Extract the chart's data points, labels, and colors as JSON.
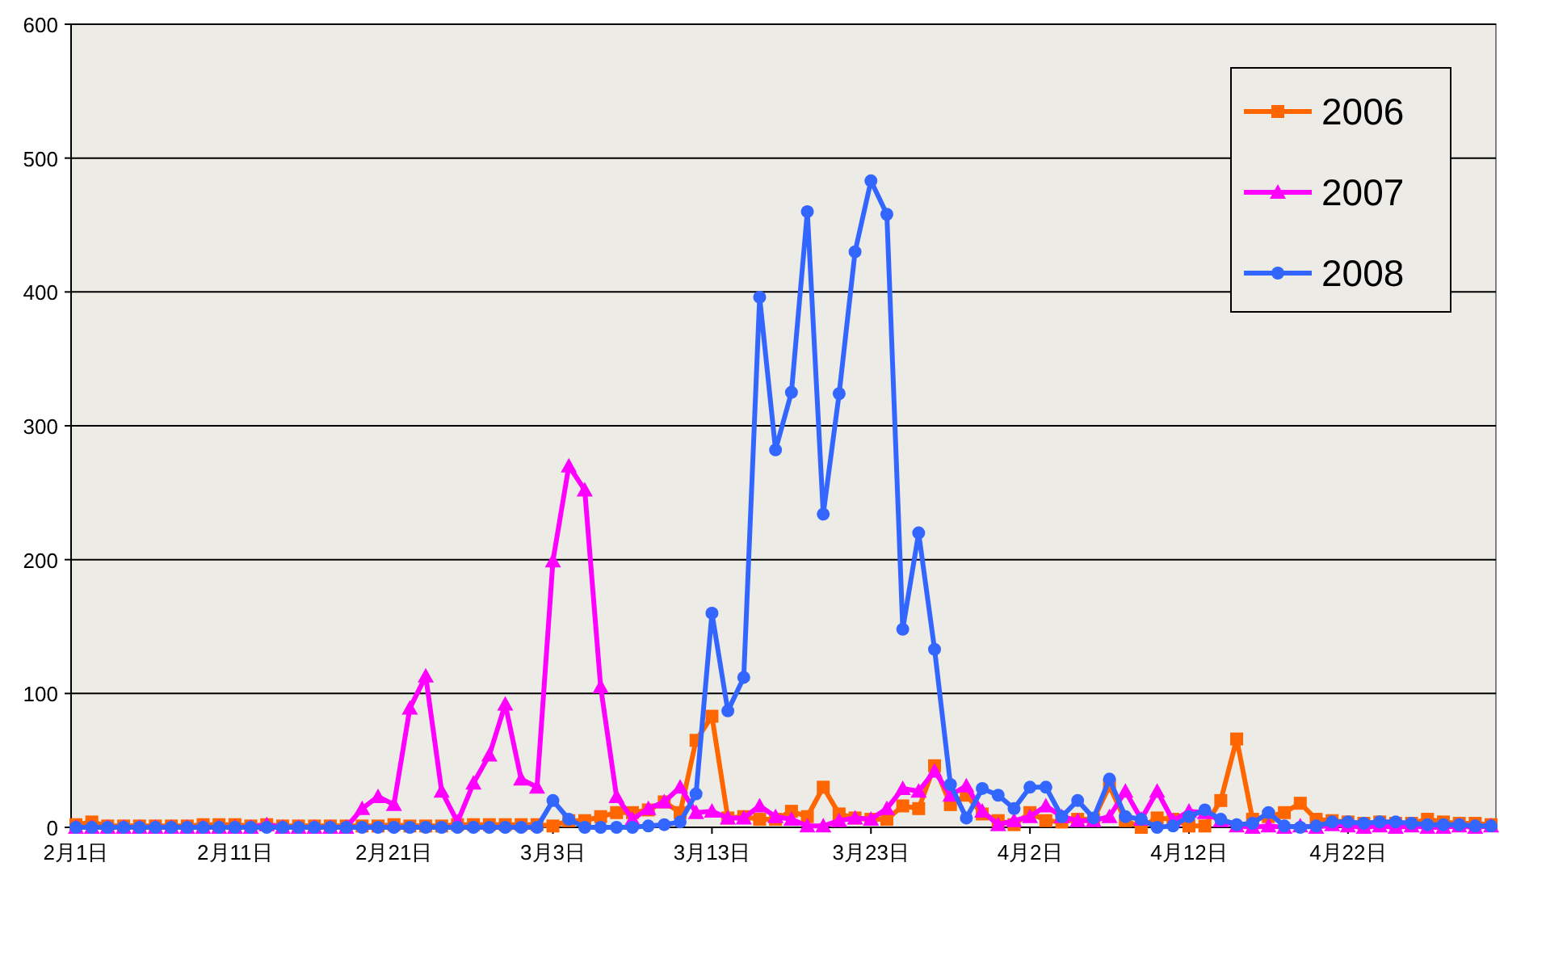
{
  "chart_data": {
    "type": "line",
    "categories": [
      "2月1日",
      null,
      null,
      null,
      null,
      null,
      null,
      null,
      null,
      null,
      "2月11日",
      null,
      null,
      null,
      null,
      null,
      null,
      null,
      null,
      null,
      "2月21日",
      null,
      null,
      null,
      null,
      null,
      null,
      null,
      null,
      null,
      "3月3日",
      null,
      null,
      null,
      null,
      null,
      null,
      null,
      null,
      null,
      "3月13日",
      null,
      null,
      null,
      null,
      null,
      null,
      null,
      null,
      null,
      "3月23日",
      null,
      null,
      null,
      null,
      null,
      null,
      null,
      null,
      null,
      "4月2日",
      null,
      null,
      null,
      null,
      null,
      null,
      null,
      null,
      null,
      "4月12日",
      null,
      null,
      null,
      null,
      null,
      null,
      null,
      null,
      null,
      "4月22日",
      null,
      null,
      null,
      null,
      null,
      null,
      null,
      null,
      null
    ],
    "series": [
      {
        "name": "2006",
        "color": "#ff6600",
        "marker": "square",
        "values": [
          2,
          4,
          1,
          1,
          1,
          1,
          1,
          1,
          2,
          2,
          2,
          1,
          2,
          1,
          1,
          1,
          1,
          1,
          1,
          1,
          2,
          1,
          1,
          1,
          2,
          2,
          2,
          2,
          2,
          2,
          1,
          5,
          5,
          8,
          11,
          11,
          13,
          19,
          11,
          65,
          83,
          7,
          8,
          6,
          6,
          12,
          8,
          30,
          10,
          7,
          6,
          6,
          16,
          14,
          46,
          17,
          24,
          10,
          5,
          2,
          11,
          5,
          4,
          6,
          6,
          31,
          5,
          0,
          7,
          6,
          1,
          1,
          20,
          66,
          6,
          8,
          11,
          18,
          6,
          5,
          4,
          3,
          4,
          3,
          3,
          6,
          4,
          3,
          3,
          2
        ]
      },
      {
        "name": "2007",
        "color": "#ff00ff",
        "marker": "triangle",
        "values": [
          0,
          0,
          0,
          0,
          0,
          0,
          0,
          0,
          0,
          0,
          0,
          0,
          2,
          0,
          0,
          0,
          0,
          0,
          14,
          23,
          17,
          89,
          113,
          27,
          4,
          33,
          54,
          92,
          36,
          30,
          199,
          270,
          252,
          105,
          23,
          6,
          14,
          19,
          30,
          11,
          12,
          7,
          7,
          16,
          8,
          6,
          1,
          1,
          5,
          7,
          6,
          14,
          29,
          27,
          42,
          24,
          31,
          12,
          2,
          5,
          8,
          16,
          8,
          5,
          5,
          8,
          27,
          6,
          27,
          5,
          12,
          11,
          5,
          1,
          0,
          1,
          0,
          1,
          0,
          2,
          1,
          0,
          1,
          0,
          1,
          0,
          0,
          1,
          0,
          1
        ]
      },
      {
        "name": "2008",
        "color": "#3366ff",
        "marker": "circle",
        "values": [
          0,
          0,
          0,
          0,
          0,
          0,
          0,
          0,
          0,
          0,
          0,
          0,
          0,
          0,
          0,
          0,
          0,
          0,
          0,
          0,
          0,
          0,
          0,
          0,
          0,
          0,
          0,
          0,
          0,
          0,
          20,
          6,
          0,
          0,
          0,
          0,
          1,
          2,
          4,
          25,
          160,
          87,
          112,
          396,
          282,
          325,
          460,
          234,
          324,
          430,
          483,
          458,
          148,
          220,
          133,
          32,
          7,
          29,
          24,
          14,
          30,
          30,
          8,
          20,
          7,
          36,
          8,
          6,
          0,
          1,
          8,
          13,
          6,
          2,
          3,
          11,
          1,
          0,
          1,
          4,
          4,
          3,
          4,
          4,
          3,
          2,
          2,
          2,
          1,
          1
        ]
      }
    ],
    "ylim": [
      0,
      600
    ],
    "yticks": [
      0,
      100,
      200,
      300,
      400,
      500,
      600
    ],
    "grid": "y",
    "legend": "top right"
  }
}
